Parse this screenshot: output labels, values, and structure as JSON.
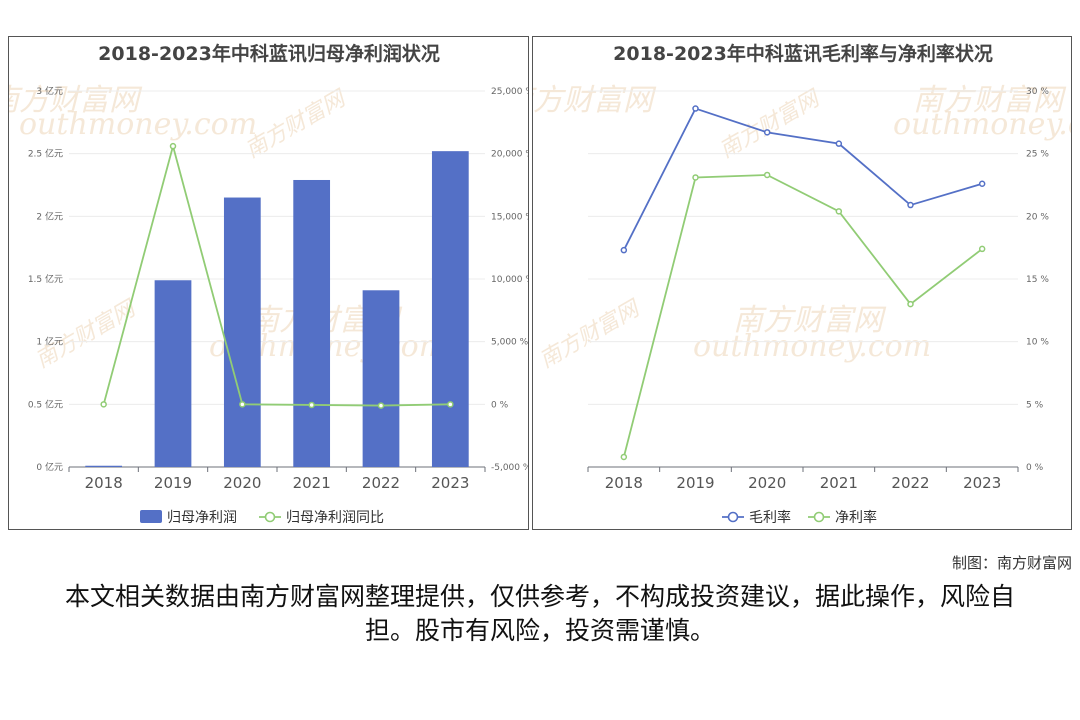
{
  "left_chart": {
    "title": "2018-2023年中科蓝讯归母净利润状况",
    "legend": [
      "归母净利润",
      "归母净利润同比"
    ],
    "colors": {
      "bar": "#5470c6",
      "line": "#91cc75"
    }
  },
  "right_chart": {
    "title": "2018-2023年中科蓝讯毛利率与净利率状况",
    "legend": [
      "毛利率",
      "净利率"
    ],
    "colors": {
      "gross": "#5470c6",
      "net": "#91cc75"
    }
  },
  "watermark": {
    "cn": "南方财富网",
    "en": "outhmoney.com"
  },
  "source": "制图：南方财富网",
  "disclaimer": "本文相关数据由南方财富网整理提供，仅供参考，不构成投资建议，据此操作，风险自担。股市有风险，投资需谨慎。",
  "chart_data": [
    {
      "type": "bar",
      "title": "2018-2023年中科蓝讯归母净利润状况",
      "categories": [
        "2018",
        "2019",
        "2020",
        "2021",
        "2022",
        "2023"
      ],
      "series": [
        {
          "name": "归母净利润",
          "type": "bar",
          "axis": "left",
          "values": [
            0.01,
            1.49,
            2.15,
            2.29,
            1.41,
            2.52
          ]
        },
        {
          "name": "归母净利润同比",
          "type": "line",
          "axis": "right",
          "values": [
            0,
            20600,
            0,
            -50,
            -100,
            0
          ]
        }
      ],
      "y_left": {
        "min": 0,
        "max": 3,
        "ticks": [
          0,
          0.5,
          1,
          1.5,
          2,
          2.5,
          3
        ],
        "tick_labels": [
          "0 亿元",
          "0.5 亿元",
          "1 亿元",
          "1.5 亿元",
          "2 亿元",
          "2.5 亿元",
          "3 亿元"
        ]
      },
      "y_right": {
        "min": -5000,
        "max": 25000,
        "ticks": [
          -5000,
          0,
          5000,
          10000,
          15000,
          20000,
          25000
        ],
        "tick_labels": [
          "-5,000 %",
          "0 %",
          "5,000 %",
          "10,000 %",
          "15,000 %",
          "20,000 %",
          "25,000 %"
        ]
      },
      "legend_position": "bottom"
    },
    {
      "type": "line",
      "title": "2018-2023年中科蓝讯毛利率与净利率状况",
      "categories": [
        "2018",
        "2019",
        "2020",
        "2021",
        "2022",
        "2023"
      ],
      "series": [
        {
          "name": "毛利率",
          "values": [
            17.3,
            28.6,
            26.7,
            25.8,
            20.9,
            22.6
          ]
        },
        {
          "name": "净利率",
          "values": [
            0.8,
            23.1,
            23.3,
            20.4,
            13.0,
            17.4
          ]
        }
      ],
      "y": {
        "min": 0,
        "max": 30,
        "ticks": [
          0,
          5,
          10,
          15,
          20,
          25,
          30
        ],
        "tick_labels": [
          "0 %",
          "5 %",
          "10 %",
          "15 %",
          "20 %",
          "25 %",
          "30 %"
        ]
      },
      "legend_position": "bottom"
    }
  ]
}
